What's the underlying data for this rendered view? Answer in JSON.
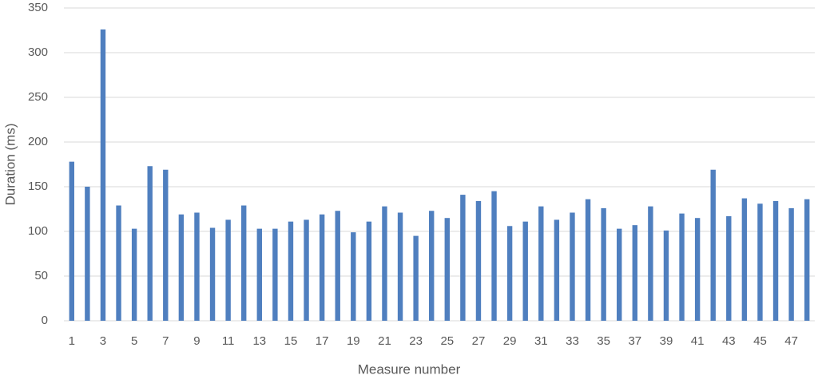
{
  "chart_data": {
    "type": "bar",
    "x_label": "Measure number",
    "y_label": "Duration (ms)",
    "categories": [
      "1",
      null,
      "3",
      null,
      "5",
      null,
      "7",
      null,
      "9",
      null,
      "11",
      null,
      "13",
      null,
      "15",
      null,
      "17",
      null,
      "19",
      null,
      "21",
      null,
      "23",
      null,
      "25",
      null,
      "27",
      null,
      "29",
      null,
      "31",
      null,
      "33",
      null,
      "35",
      null,
      "37",
      null,
      "39",
      null,
      "41",
      null,
      "43",
      null,
      "45",
      null,
      "47",
      null
    ],
    "values": [
      178,
      150,
      326,
      129,
      103,
      173,
      169,
      119,
      121,
      104,
      113,
      129,
      103,
      103,
      111,
      113,
      119,
      123,
      99,
      111,
      128,
      121,
      95,
      123,
      115,
      141,
      134,
      145,
      106,
      111,
      128,
      113,
      121,
      136,
      126,
      103,
      107,
      128,
      101,
      120,
      115,
      169,
      117,
      137,
      131,
      134,
      126,
      136
    ],
    "color": "#4f7fbf",
    "ylim": [
      0,
      350
    ],
    "yticks": [
      0,
      50,
      100,
      150,
      200,
      250,
      300,
      350
    ],
    "grid": true
  }
}
